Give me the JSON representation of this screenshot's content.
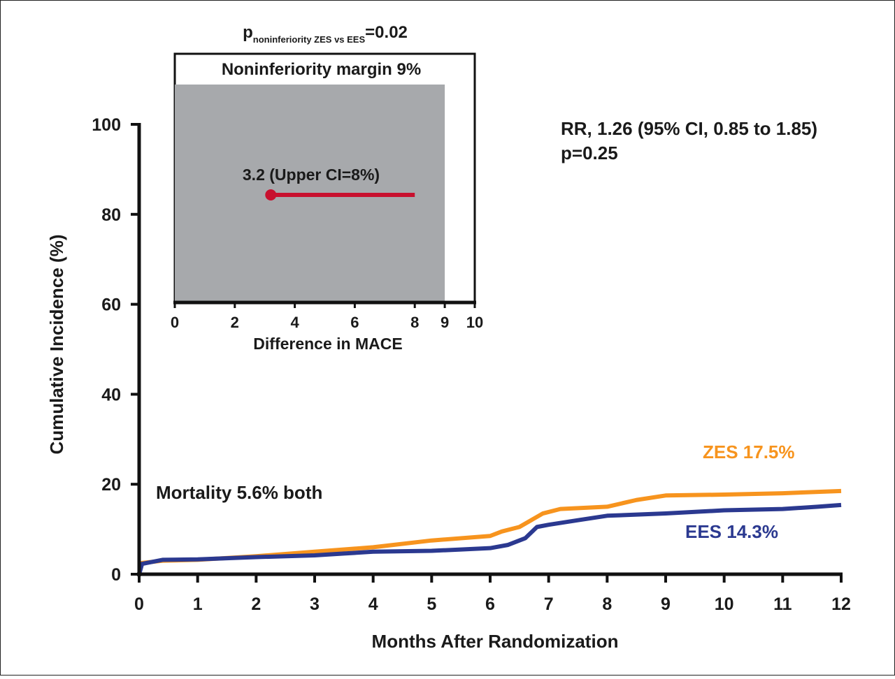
{
  "chart_data": [
    {
      "type": "line",
      "xlabel": "Months After Randomization",
      "ylabel": "Cumulative Incidence (%)",
      "xlim": [
        0,
        12
      ],
      "xticks": [
        0,
        1,
        2,
        3,
        4,
        5,
        6,
        7,
        8,
        9,
        10,
        11,
        12
      ],
      "ylim": [
        0,
        100
      ],
      "yticks": [
        0,
        20,
        40,
        60,
        80,
        100
      ],
      "annotations": [
        "RR, 1.26 (95% CI, 0.85 to 1.85)",
        "p=0.25",
        "Mortality 5.6% both"
      ],
      "series": [
        {
          "name": "ZES 17.5%",
          "color": "#f7941e",
          "x": [
            0,
            0.05,
            0.4,
            1,
            2,
            3,
            4,
            5,
            6,
            6.2,
            6.5,
            6.7,
            6.9,
            7.2,
            8,
            8.5,
            9,
            10,
            11,
            12
          ],
          "values": [
            0,
            2.5,
            3,
            3.2,
            4,
            5,
            6,
            7.5,
            8.5,
            9.5,
            10.5,
            12,
            13.5,
            14.5,
            15,
            16.5,
            17.5,
            17.7,
            18,
            18.5
          ]
        },
        {
          "name": "EES 14.3%",
          "color": "#2b3990",
          "x": [
            0,
            0.05,
            0.4,
            1,
            2,
            3,
            3.5,
            4,
            5,
            5.5,
            6,
            6.3,
            6.6,
            6.8,
            7,
            7.5,
            8,
            9,
            10,
            11,
            11.6,
            12
          ],
          "values": [
            0,
            2.3,
            3.2,
            3.3,
            3.8,
            4.2,
            4.6,
            5,
            5.2,
            5.5,
            5.8,
            6.5,
            8,
            10.5,
            11,
            12,
            13,
            13.5,
            14.2,
            14.5,
            15,
            15.4
          ]
        }
      ]
    },
    {
      "type": "interval",
      "p_label": [
        "p",
        "noninferiority ZES vs EES",
        "=0.02"
      ],
      "title": "Noninferiority margin 9%",
      "xlabel": "Difference in MACE",
      "xlim": [
        0,
        10
      ],
      "xticks": [
        0,
        2,
        4,
        6,
        8,
        9,
        10
      ],
      "margin": 9,
      "margin_color": "#a7a9ac",
      "estimate": 3.2,
      "upper": 8,
      "estimate_label": "3.2 (Upper CI=8%)",
      "color": "#c8102e"
    }
  ]
}
